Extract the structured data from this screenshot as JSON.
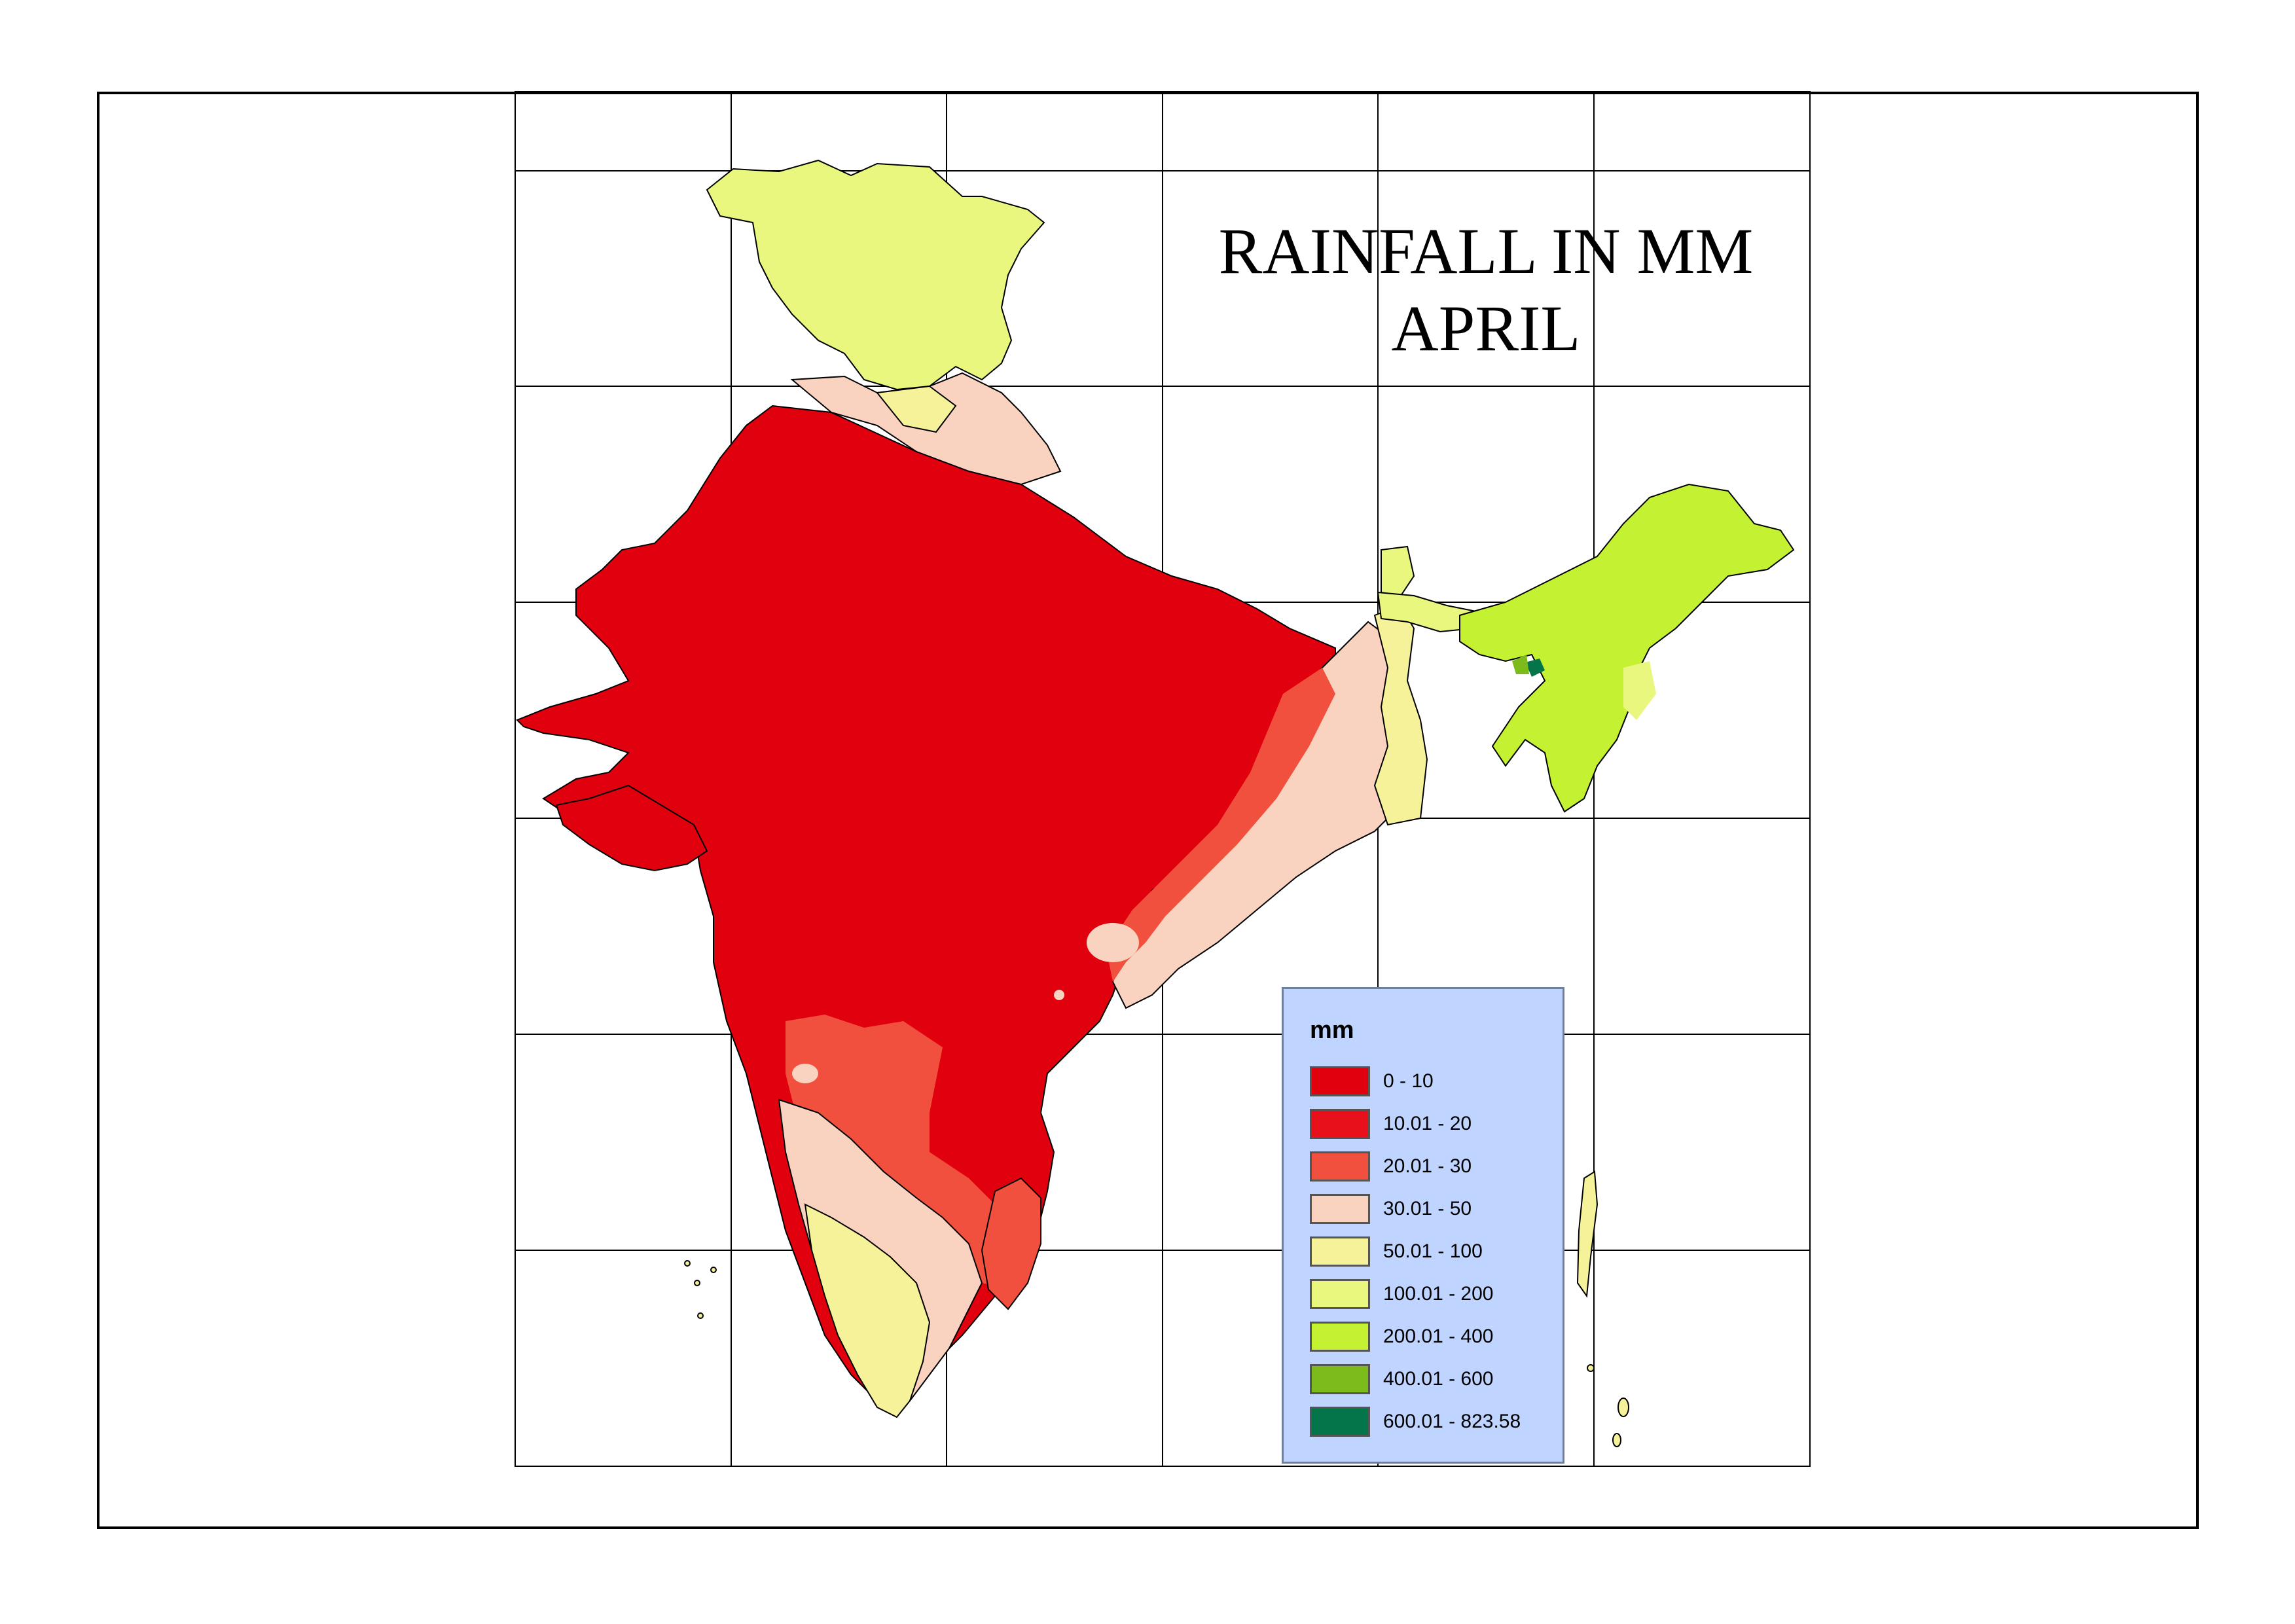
{
  "title": {
    "line1": "RAINFALL IN MM",
    "line2": "APRIL"
  },
  "legend": {
    "title": "mm",
    "items": [
      {
        "label": "0 - 10",
        "color": "#e0000e"
      },
      {
        "label": "10.01 - 20",
        "color": "#e8101a"
      },
      {
        "label": "20.01 - 30",
        "color": "#f2503e"
      },
      {
        "label": "30.01 - 50",
        "color": "#f9d2c0"
      },
      {
        "label": "50.01 - 100",
        "color": "#f6f29a"
      },
      {
        "label": "100.01 - 200",
        "color": "#eaf77e"
      },
      {
        "label": "200.01 - 400",
        "color": "#c4f233"
      },
      {
        "label": "400.01 - 600",
        "color": "#7dbb1d"
      },
      {
        "label": "600.01 - 823.58",
        "color": "#04754a"
      }
    ]
  }
}
